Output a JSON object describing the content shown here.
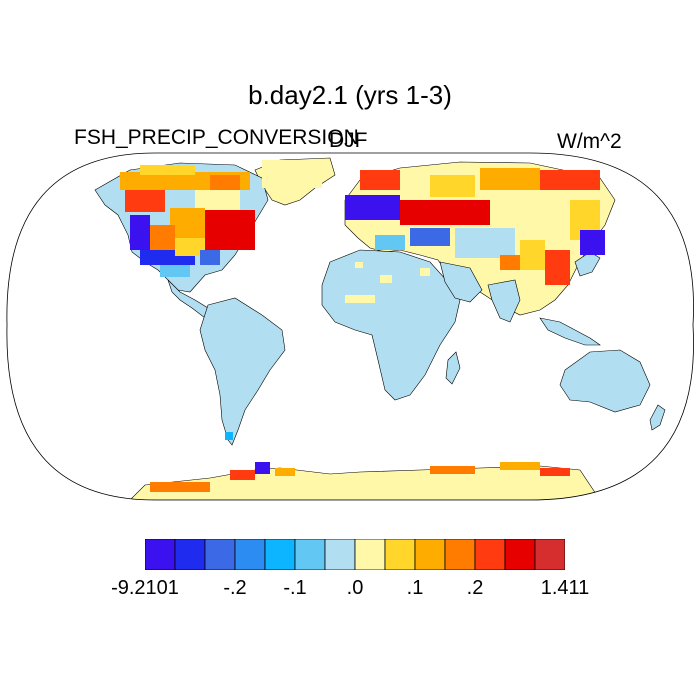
{
  "title": "b.day2.1 (yrs 1-3)",
  "variable": "FSH_PRECIP_CONVERSION",
  "season": "DJF",
  "units": "W/m^2",
  "colorbar": {
    "colors": [
      "#3b11f0",
      "#1f2cf0",
      "#3c6ae6",
      "#2c8cf2",
      "#0db4ff",
      "#62c7f2",
      "#b1dff1",
      "#fff8a8",
      "#ffd629",
      "#ffac00",
      "#ff7c00",
      "#ff3b0f",
      "#e60000",
      "#d62e2e"
    ],
    "labels": [
      {
        "text": "-9.2101",
        "boundary": 0
      },
      {
        "text": "-.2",
        "boundary": 3
      },
      {
        "text": "-.1",
        "boundary": 5
      },
      {
        "text": ".0",
        "boundary": 7
      },
      {
        "text": ".1",
        "boundary": 9
      },
      {
        "text": ".2",
        "boundary": 11
      },
      {
        "text": "1.411",
        "boundary": 14
      }
    ]
  }
}
